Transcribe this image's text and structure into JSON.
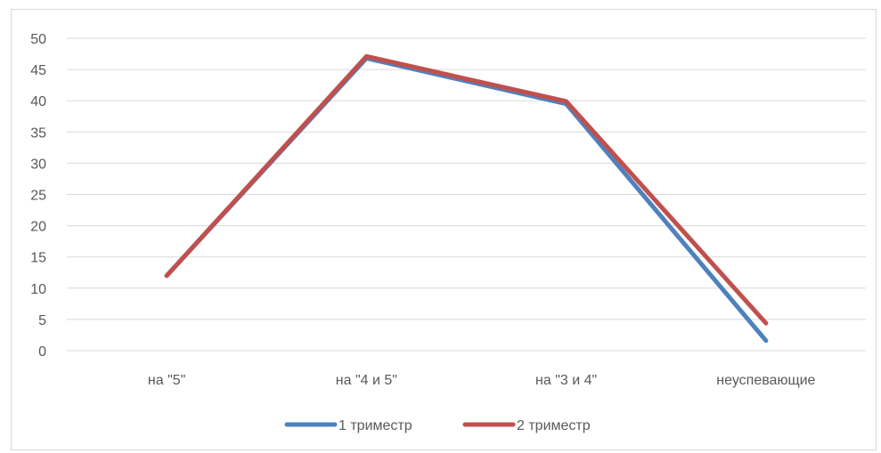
{
  "chart_data": {
    "type": "line",
    "title": "",
    "xlabel": "",
    "ylabel": "",
    "categories": [
      "на \"5\"",
      "на \"4 и 5\"",
      "на \"3 и 4\"",
      "неуспевающие"
    ],
    "ylim": [
      0,
      50
    ],
    "yticks": [
      0,
      5,
      10,
      15,
      20,
      25,
      30,
      35,
      40,
      45,
      50
    ],
    "grid": true,
    "legend_position": "bottom",
    "series": [
      {
        "name": "1 триместр",
        "color": "#4f81bd",
        "values": [
          12,
          46.8,
          39.5,
          1.6
        ]
      },
      {
        "name": "2 триместр",
        "color": "#c0504d",
        "values": [
          12,
          47.1,
          39.9,
          4.4
        ]
      }
    ]
  }
}
